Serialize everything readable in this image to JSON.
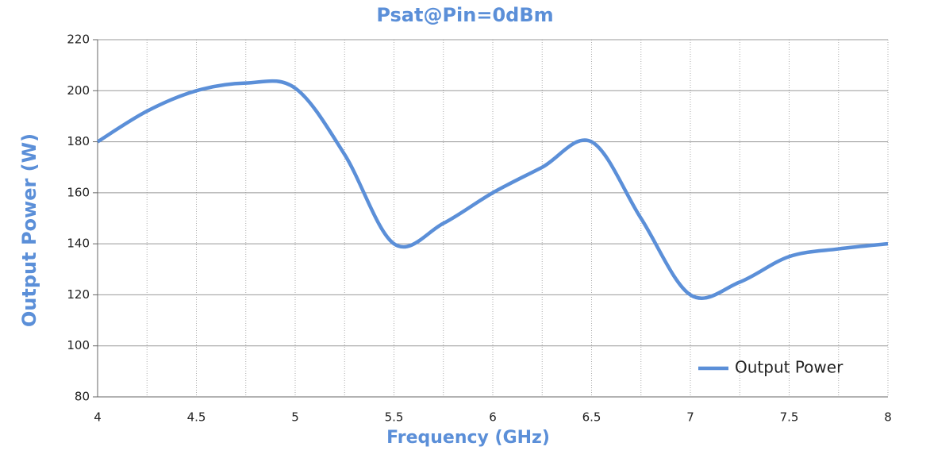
{
  "chart_data": {
    "type": "line",
    "title": "Psat@Pin=0dBm",
    "x_label": "Frequency (GHz)",
    "y_label": "Output Power (W)",
    "x": [
      4,
      4.25,
      4.5,
      4.75,
      5,
      5.25,
      5.5,
      5.75,
      6,
      6.25,
      6.5,
      6.75,
      7,
      7.25,
      7.5,
      7.75,
      8
    ],
    "series": [
      {
        "name": "Output Power",
        "color": "#5b8fd8",
        "values": [
          180,
          192,
          200,
          203,
          201,
          175,
          140,
          148,
          160,
          170,
          180,
          150,
          120,
          125,
          135,
          138,
          140
        ]
      }
    ],
    "xlim": [
      4,
      8
    ],
    "xticks": [
      4,
      4.5,
      5,
      5.5,
      6,
      6.5,
      7,
      7.5,
      8
    ],
    "xminorticks": [
      4.25,
      4.75,
      5.25,
      5.75,
      6.25,
      6.75,
      7.25,
      7.75
    ],
    "ylim": [
      80,
      220
    ],
    "yticks": [
      80,
      100,
      120,
      140,
      160,
      180,
      200,
      220
    ],
    "grid": true,
    "legend": "lower right"
  }
}
